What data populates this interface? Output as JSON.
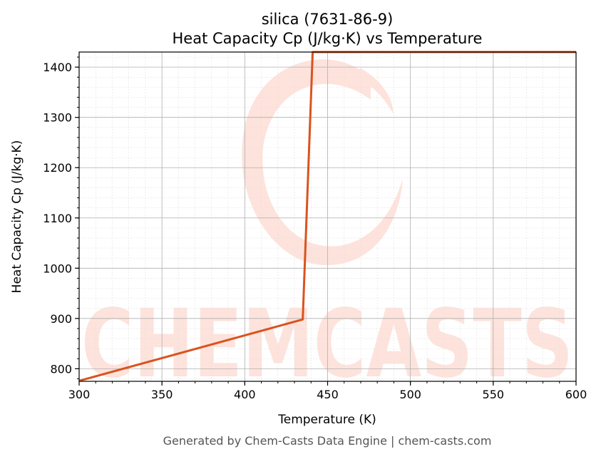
{
  "chart_data": {
    "type": "line",
    "title": "silica (7631-86-9)",
    "subtitle": "Heat Capacity Cp (J/kg·K) vs Temperature",
    "xlabel": "Temperature (K)",
    "ylabel": "Heat Capacity Cp (J/kg·K)",
    "xlim": [
      300,
      600
    ],
    "ylim": [
      775,
      1430
    ],
    "xticks": [
      300,
      350,
      400,
      450,
      500,
      550,
      600
    ],
    "yticks": [
      800,
      900,
      1000,
      1100,
      1200,
      1300,
      1400
    ],
    "grid": true,
    "series": [
      {
        "color": "#d9531e",
        "x": [
          300,
          435,
          441,
          600
        ],
        "y": [
          776,
          898,
          1430,
          1430
        ]
      }
    ]
  },
  "watermark": {
    "text": "CHEMCASTS",
    "color": "#fde3dc"
  },
  "footer": "Generated by Chem-Casts Data Engine | chem-casts.com"
}
